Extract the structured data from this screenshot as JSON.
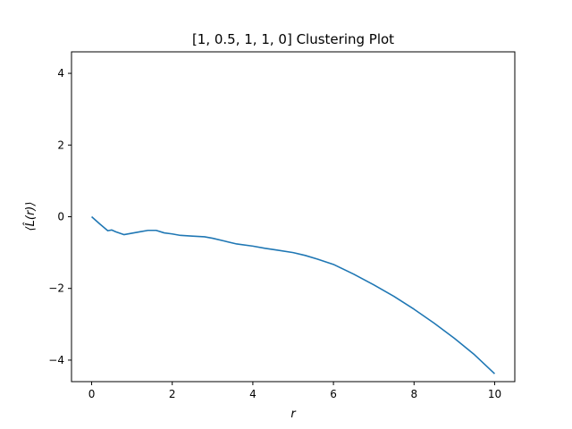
{
  "chart_data": {
    "type": "line",
    "title": "[1, 0.5, 1, 1, 0] Clustering Plot",
    "xlabel": "r",
    "ylabel": "⟨L̂(r)⟩",
    "xlim": [
      -0.5,
      10.5
    ],
    "ylim": [
      -4.6,
      4.6
    ],
    "xticks": [
      0,
      2,
      4,
      6,
      8,
      10
    ],
    "yticks": [
      -4,
      -2,
      0,
      2,
      4
    ],
    "grid": false,
    "line_color": "#1f77b4",
    "series": [
      {
        "x": [
          0,
          0.2,
          0.4,
          0.5,
          0.6,
          0.8,
          1.0,
          1.2,
          1.4,
          1.6,
          1.8,
          2.0,
          2.2,
          2.5,
          2.8,
          3.0,
          3.3,
          3.6,
          4.0,
          4.3,
          4.6,
          5.0,
          5.3,
          5.6,
          6.0,
          6.5,
          7.0,
          7.5,
          8.0,
          8.5,
          9.0,
          9.5,
          10.0
        ],
        "y": [
          0,
          -0.2,
          -0.39,
          -0.37,
          -0.42,
          -0.5,
          -0.46,
          -0.42,
          -0.38,
          -0.38,
          -0.45,
          -0.48,
          -0.52,
          -0.54,
          -0.56,
          -0.6,
          -0.68,
          -0.76,
          -0.82,
          -0.88,
          -0.93,
          -1.0,
          -1.08,
          -1.18,
          -1.33,
          -1.6,
          -1.9,
          -2.22,
          -2.58,
          -2.97,
          -3.39,
          -3.85,
          -4.38
        ]
      }
    ]
  }
}
